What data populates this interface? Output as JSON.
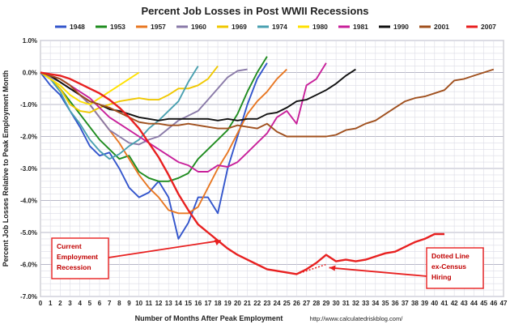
{
  "chart_data": {
    "type": "line",
    "title": "Percent Job Losses in Post WWII Recessions",
    "xlabel": "Number of Months After Peak Employment",
    "ylabel": "Percent Job Losses Relative to Peak Employment Month",
    "credit": "http://www.calculatedriskblog.com/",
    "xlim": [
      0,
      47
    ],
    "ylim": [
      -7.0,
      1.0
    ],
    "x_ticks": [
      "0",
      "1",
      "2",
      "3",
      "4",
      "5",
      "6",
      "7",
      "8",
      "9",
      "10",
      "11",
      "12",
      "13",
      "14",
      "15",
      "16",
      "17",
      "18",
      "19",
      "20",
      "21",
      "22",
      "23",
      "24",
      "25",
      "26",
      "27",
      "28",
      "29",
      "30",
      "31",
      "32",
      "33",
      "34",
      "35",
      "36",
      "37",
      "38",
      "39",
      "40",
      "41",
      "42",
      "43",
      "44",
      "45",
      "46",
      "47"
    ],
    "y_ticks": [
      "1.0%",
      "0.0%",
      "-1.0%",
      "-2.0%",
      "-3.0%",
      "-4.0%",
      "-5.0%",
      "-6.0%",
      "-7.0%"
    ],
    "grid": true,
    "legend_position": "top",
    "series": [
      {
        "name": "1948",
        "color": "#3355cc",
        "values": [
          0,
          -0.4,
          -0.7,
          -1.2,
          -1.7,
          -2.3,
          -2.6,
          -2.5,
          -3.0,
          -3.6,
          -3.9,
          -3.75,
          -3.4,
          -3.9,
          -5.2,
          -4.7,
          -3.9,
          -3.9,
          -4.4,
          -3.0,
          -2.0,
          -1.0,
          -0.2,
          0.3
        ]
      },
      {
        "name": "1953",
        "color": "#1f8c1f",
        "values": [
          0,
          -0.2,
          -0.5,
          -0.9,
          -1.3,
          -1.7,
          -2.1,
          -2.4,
          -2.7,
          -2.6,
          -3.1,
          -3.3,
          -3.4,
          -3.4,
          -3.3,
          -3.15,
          -2.7,
          -2.4,
          -2.1,
          -1.8,
          -1.3,
          -0.6,
          0.0,
          0.5
        ]
      },
      {
        "name": "1957",
        "color": "#e87722",
        "values": [
          0,
          -0.1,
          -0.2,
          -0.4,
          -0.7,
          -1.0,
          -1.4,
          -1.8,
          -2.2,
          -2.7,
          -3.2,
          -3.6,
          -3.9,
          -4.3,
          -4.4,
          -4.4,
          -4.2,
          -3.6,
          -3.0,
          -2.5,
          -1.9,
          -1.3,
          -0.9,
          -0.6,
          -0.2,
          0.1
        ]
      },
      {
        "name": "1960",
        "color": "#8a7aa8",
        "values": [
          0,
          -0.15,
          -0.3,
          -0.5,
          -0.7,
          -1.0,
          -1.4,
          -1.8,
          -2.0,
          -2.2,
          -2.25,
          -2.1,
          -2.0,
          -1.75,
          -1.5,
          -1.35,
          -1.2,
          -0.85,
          -0.5,
          -0.15,
          0.05,
          0.1
        ]
      },
      {
        "name": "1969",
        "color": "#f0c800",
        "values": [
          0,
          -0.2,
          -0.5,
          -1.0,
          -1.2,
          -1.25,
          -1.1,
          -1.0,
          -0.9,
          -0.85,
          -0.8,
          -0.85,
          -0.85,
          -0.7,
          -0.5,
          -0.5,
          -0.4,
          -0.2,
          0.2
        ]
      },
      {
        "name": "1974",
        "color": "#4aa0b0",
        "values": [
          0,
          -0.2,
          -0.6,
          -1.2,
          -1.6,
          -2.1,
          -2.45,
          -2.7,
          -2.55,
          -2.3,
          -2.1,
          -1.75,
          -1.5,
          -1.2,
          -0.9,
          -0.3,
          0.2
        ]
      },
      {
        "name": "1980",
        "color": "#ffe100",
        "values": [
          0,
          -0.2,
          -0.4,
          -0.7,
          -0.9,
          -1.0,
          -0.8,
          -0.6,
          -0.4,
          -0.2,
          0.0
        ]
      },
      {
        "name": "1981",
        "color": "#c8209a",
        "values": [
          0,
          -0.1,
          -0.2,
          -0.4,
          -0.6,
          -0.8,
          -1.1,
          -1.4,
          -1.6,
          -1.8,
          -2.0,
          -2.2,
          -2.4,
          -2.6,
          -2.8,
          -2.9,
          -3.1,
          -3.1,
          -2.9,
          -2.95,
          -2.8,
          -2.5,
          -2.2,
          -1.9,
          -1.4,
          -1.2,
          -1.6,
          -0.4,
          -0.2,
          0.3
        ]
      },
      {
        "name": "1990",
        "color": "#111111",
        "values": [
          0,
          -0.1,
          -0.3,
          -0.5,
          -0.7,
          -0.9,
          -1.0,
          -1.15,
          -1.2,
          -1.3,
          -1.4,
          -1.45,
          -1.5,
          -1.45,
          -1.45,
          -1.45,
          -1.45,
          -1.45,
          -1.5,
          -1.45,
          -1.5,
          -1.45,
          -1.45,
          -1.3,
          -1.25,
          -1.1,
          -0.9,
          -0.85,
          -0.7,
          -0.55,
          -0.35,
          -0.1,
          0.1
        ]
      },
      {
        "name": "2001",
        "color": "#a0501e",
        "values": [
          0,
          -0.1,
          -0.2,
          -0.4,
          -0.7,
          -0.9,
          -1.0,
          -1.1,
          -1.25,
          -1.4,
          -1.55,
          -1.6,
          -1.6,
          -1.65,
          -1.65,
          -1.6,
          -1.65,
          -1.7,
          -1.75,
          -1.75,
          -1.65,
          -1.7,
          -1.75,
          -1.6,
          -1.85,
          -2.0,
          -2.0,
          -2.0,
          -2.0,
          -2.0,
          -1.95,
          -1.8,
          -1.75,
          -1.6,
          -1.5,
          -1.3,
          -1.1,
          -0.9,
          -0.8,
          -0.75,
          -0.65,
          -0.55,
          -0.25,
          -0.2,
          -0.1,
          0.0,
          0.1
        ]
      },
      {
        "name": "2007",
        "color": "#e82020",
        "values": [
          0,
          -0.05,
          -0.1,
          -0.2,
          -0.35,
          -0.5,
          -0.65,
          -0.85,
          -1.1,
          -1.4,
          -1.75,
          -2.2,
          -2.65,
          -3.2,
          -3.8,
          -4.3,
          -4.75,
          -5.0,
          -5.25,
          -5.5,
          -5.7,
          -5.85,
          -6.0,
          -6.15,
          -6.2,
          -6.25,
          -6.3,
          -6.15,
          -5.95,
          -5.7,
          -5.9,
          -5.85,
          -5.9,
          -5.85,
          -5.75,
          -5.65,
          -5.6,
          -5.45,
          -5.3,
          -5.2,
          -5.05,
          -5.05
        ]
      },
      {
        "name": "2007 ex-Census",
        "color": "#e82020",
        "dotted": true,
        "start": 26,
        "values": [
          -6.3,
          -6.2,
          -6.1,
          -6.0
        ]
      }
    ],
    "annotations": [
      {
        "lines": [
          "Current",
          "Employment",
          "Recession"
        ]
      },
      {
        "lines": [
          "Dotted Line",
          "ex-Census",
          "Hiring"
        ]
      }
    ]
  }
}
